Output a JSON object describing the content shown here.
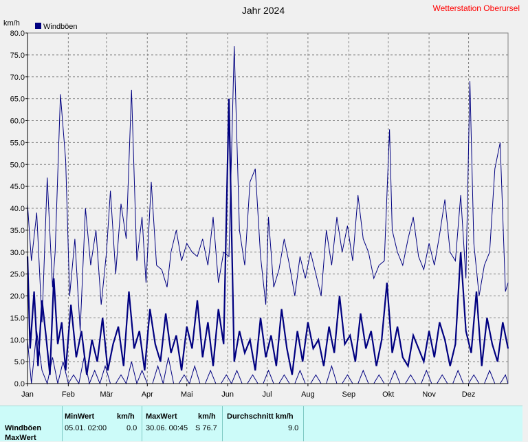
{
  "chart_data": {
    "type": "line",
    "title": "Jahr 2024",
    "station": "Wetterstation Oberursel",
    "yunit": "km/h",
    "ylim": [
      0,
      80
    ],
    "yticks": [
      "0.0",
      "5.0",
      "10.0",
      "15.0",
      "20.0",
      "25.0",
      "30.0",
      "35.0",
      "40.0",
      "45.0",
      "50.0",
      "55.0",
      "60.0",
      "65.0",
      "70.0",
      "75.0",
      "80.0"
    ],
    "months": [
      "Jan",
      "Feb",
      "Mär",
      "Apr",
      "Mai",
      "Jun",
      "Jul",
      "Aug",
      "Sep",
      "Okt",
      "Nov",
      "Dez"
    ],
    "legend": [
      {
        "name": "Windböen",
        "color": "#000080"
      }
    ],
    "grid": true,
    "series": [
      {
        "name": "Windböen (MaxWert)",
        "color": "#000080",
        "width": 1,
        "x": [
          1,
          4,
          8,
          12,
          16,
          20,
          22,
          26,
          30,
          33,
          37,
          41,
          45,
          49,
          53,
          57,
          61,
          64,
          68,
          72,
          76,
          80,
          84,
          88,
          91,
          95,
          99,
          103,
          107,
          110,
          114,
          118,
          122,
          126,
          130,
          134,
          138,
          142,
          146,
          150,
          154,
          158,
          162,
          166,
          170,
          174,
          178,
          182,
          184,
          188,
          192,
          196,
          200,
          204,
          208,
          212,
          216,
          220,
          224,
          228,
          232,
          236,
          240,
          244,
          248,
          252,
          256,
          260,
          264,
          268,
          272,
          276,
          278,
          282,
          286,
          290,
          294,
          298,
          302,
          306,
          310,
          314,
          318,
          322,
          326,
          330,
          334,
          337,
          340,
          344,
          348,
          352,
          356,
          360,
          364,
          366
        ],
        "y": [
          41,
          28,
          39,
          14,
          47,
          22,
          30,
          66,
          51,
          20,
          33,
          12,
          40,
          27,
          35,
          18,
          30,
          44,
          25,
          41,
          33,
          67,
          28,
          38,
          23,
          46,
          27,
          26,
          22,
          30,
          35,
          28,
          32,
          30,
          29,
          33,
          27,
          38,
          23,
          30,
          29,
          77,
          35,
          27,
          46,
          49,
          29,
          18,
          38,
          22,
          26,
          33,
          27,
          20,
          29,
          24,
          30,
          25,
          20,
          35,
          27,
          38,
          30,
          36,
          28,
          43,
          33,
          30,
          24,
          27,
          28,
          58,
          35,
          30,
          27,
          33,
          38,
          29,
          26,
          32,
          27,
          34,
          42,
          30,
          28,
          43,
          24,
          69,
          32,
          20,
          27,
          30,
          49,
          55,
          21,
          23
        ]
      },
      {
        "name": "Windböen (Mittel)",
        "color": "#000080",
        "width": 2.2,
        "x": [
          1,
          3,
          6,
          9,
          12,
          15,
          18,
          21,
          24,
          27,
          30,
          34,
          38,
          42,
          46,
          50,
          54,
          58,
          62,
          66,
          70,
          74,
          78,
          82,
          86,
          90,
          94,
          98,
          102,
          106,
          110,
          114,
          118,
          122,
          126,
          130,
          134,
          138,
          142,
          146,
          150,
          154,
          158,
          162,
          166,
          170,
          174,
          178,
          182,
          186,
          190,
          194,
          198,
          202,
          206,
          210,
          214,
          218,
          222,
          226,
          230,
          234,
          238,
          242,
          246,
          250,
          254,
          258,
          262,
          266,
          270,
          274,
          278,
          282,
          286,
          290,
          294,
          298,
          302,
          306,
          310,
          314,
          318,
          322,
          326,
          330,
          334,
          338,
          342,
          346,
          350,
          354,
          358,
          362,
          366
        ],
        "y": [
          29,
          8,
          21,
          4,
          19,
          11,
          2,
          24,
          9,
          14,
          3,
          18,
          6,
          12,
          2,
          10,
          5,
          15,
          3,
          9,
          13,
          4,
          21,
          8,
          12,
          3,
          17,
          9,
          5,
          16,
          7,
          11,
          3,
          13,
          8,
          19,
          6,
          14,
          4,
          17,
          9,
          65,
          5,
          12,
          7,
          10,
          3,
          15,
          6,
          11,
          4,
          17,
          8,
          2,
          12,
          5,
          14,
          8,
          10,
          4,
          13,
          7,
          20,
          9,
          11,
          5,
          16,
          8,
          12,
          4,
          10,
          23,
          7,
          13,
          6,
          4,
          11,
          8,
          5,
          12,
          6,
          14,
          10,
          4,
          9,
          30,
          12,
          7,
          21,
          4,
          15,
          9,
          5,
          14,
          8
        ]
      },
      {
        "name": "Windböen (MinWert)",
        "color": "#000080",
        "width": 1,
        "x": [
          1,
          4,
          8,
          12,
          16,
          20,
          24,
          28,
          32,
          36,
          40,
          44,
          48,
          52,
          56,
          60,
          64,
          68,
          72,
          76,
          80,
          84,
          88,
          92,
          96,
          100,
          104,
          108,
          112,
          116,
          120,
          124,
          128,
          132,
          136,
          140,
          144,
          148,
          152,
          156,
          160,
          164,
          168,
          172,
          176,
          180,
          184,
          188,
          192,
          196,
          200,
          204,
          208,
          212,
          216,
          220,
          224,
          228,
          232,
          236,
          240,
          244,
          248,
          252,
          256,
          260,
          264,
          268,
          272,
          276,
          280,
          284,
          288,
          292,
          296,
          300,
          304,
          308,
          312,
          316,
          320,
          324,
          328,
          332,
          336,
          340,
          344,
          348,
          352,
          356,
          360,
          364,
          366
        ],
        "y": [
          10,
          0,
          12,
          3,
          0,
          6,
          0,
          5,
          0,
          2,
          0,
          6,
          0,
          3,
          0,
          4,
          0,
          0,
          2,
          0,
          5,
          0,
          3,
          0,
          0,
          4,
          0,
          6,
          0,
          0,
          2,
          0,
          4,
          0,
          0,
          3,
          0,
          0,
          2,
          0,
          3,
          0,
          0,
          2,
          0,
          0,
          3,
          0,
          0,
          2,
          0,
          0,
          3,
          0,
          0,
          2,
          0,
          0,
          4,
          0,
          0,
          2,
          0,
          0,
          3,
          0,
          0,
          2,
          0,
          0,
          3,
          0,
          0,
          2,
          0,
          0,
          3,
          0,
          0,
          2,
          0,
          0,
          3,
          0,
          0,
          2,
          0,
          0,
          3,
          0,
          0,
          2,
          0
        ]
      }
    ]
  },
  "summary": {
    "row_label": "Windböen",
    "row_label2": "MaxWert",
    "min_header": "MinWert",
    "min_unit": "km/h",
    "min_time": "05.01.  02:00",
    "min_value": "0.0",
    "max_header": "MaxWert",
    "max_unit": "km/h",
    "max_time": "30.06.  00:45",
    "max_value": "S 76.7",
    "avg_header": "Durchschnitt km/h",
    "avg_value": "9.0"
  }
}
